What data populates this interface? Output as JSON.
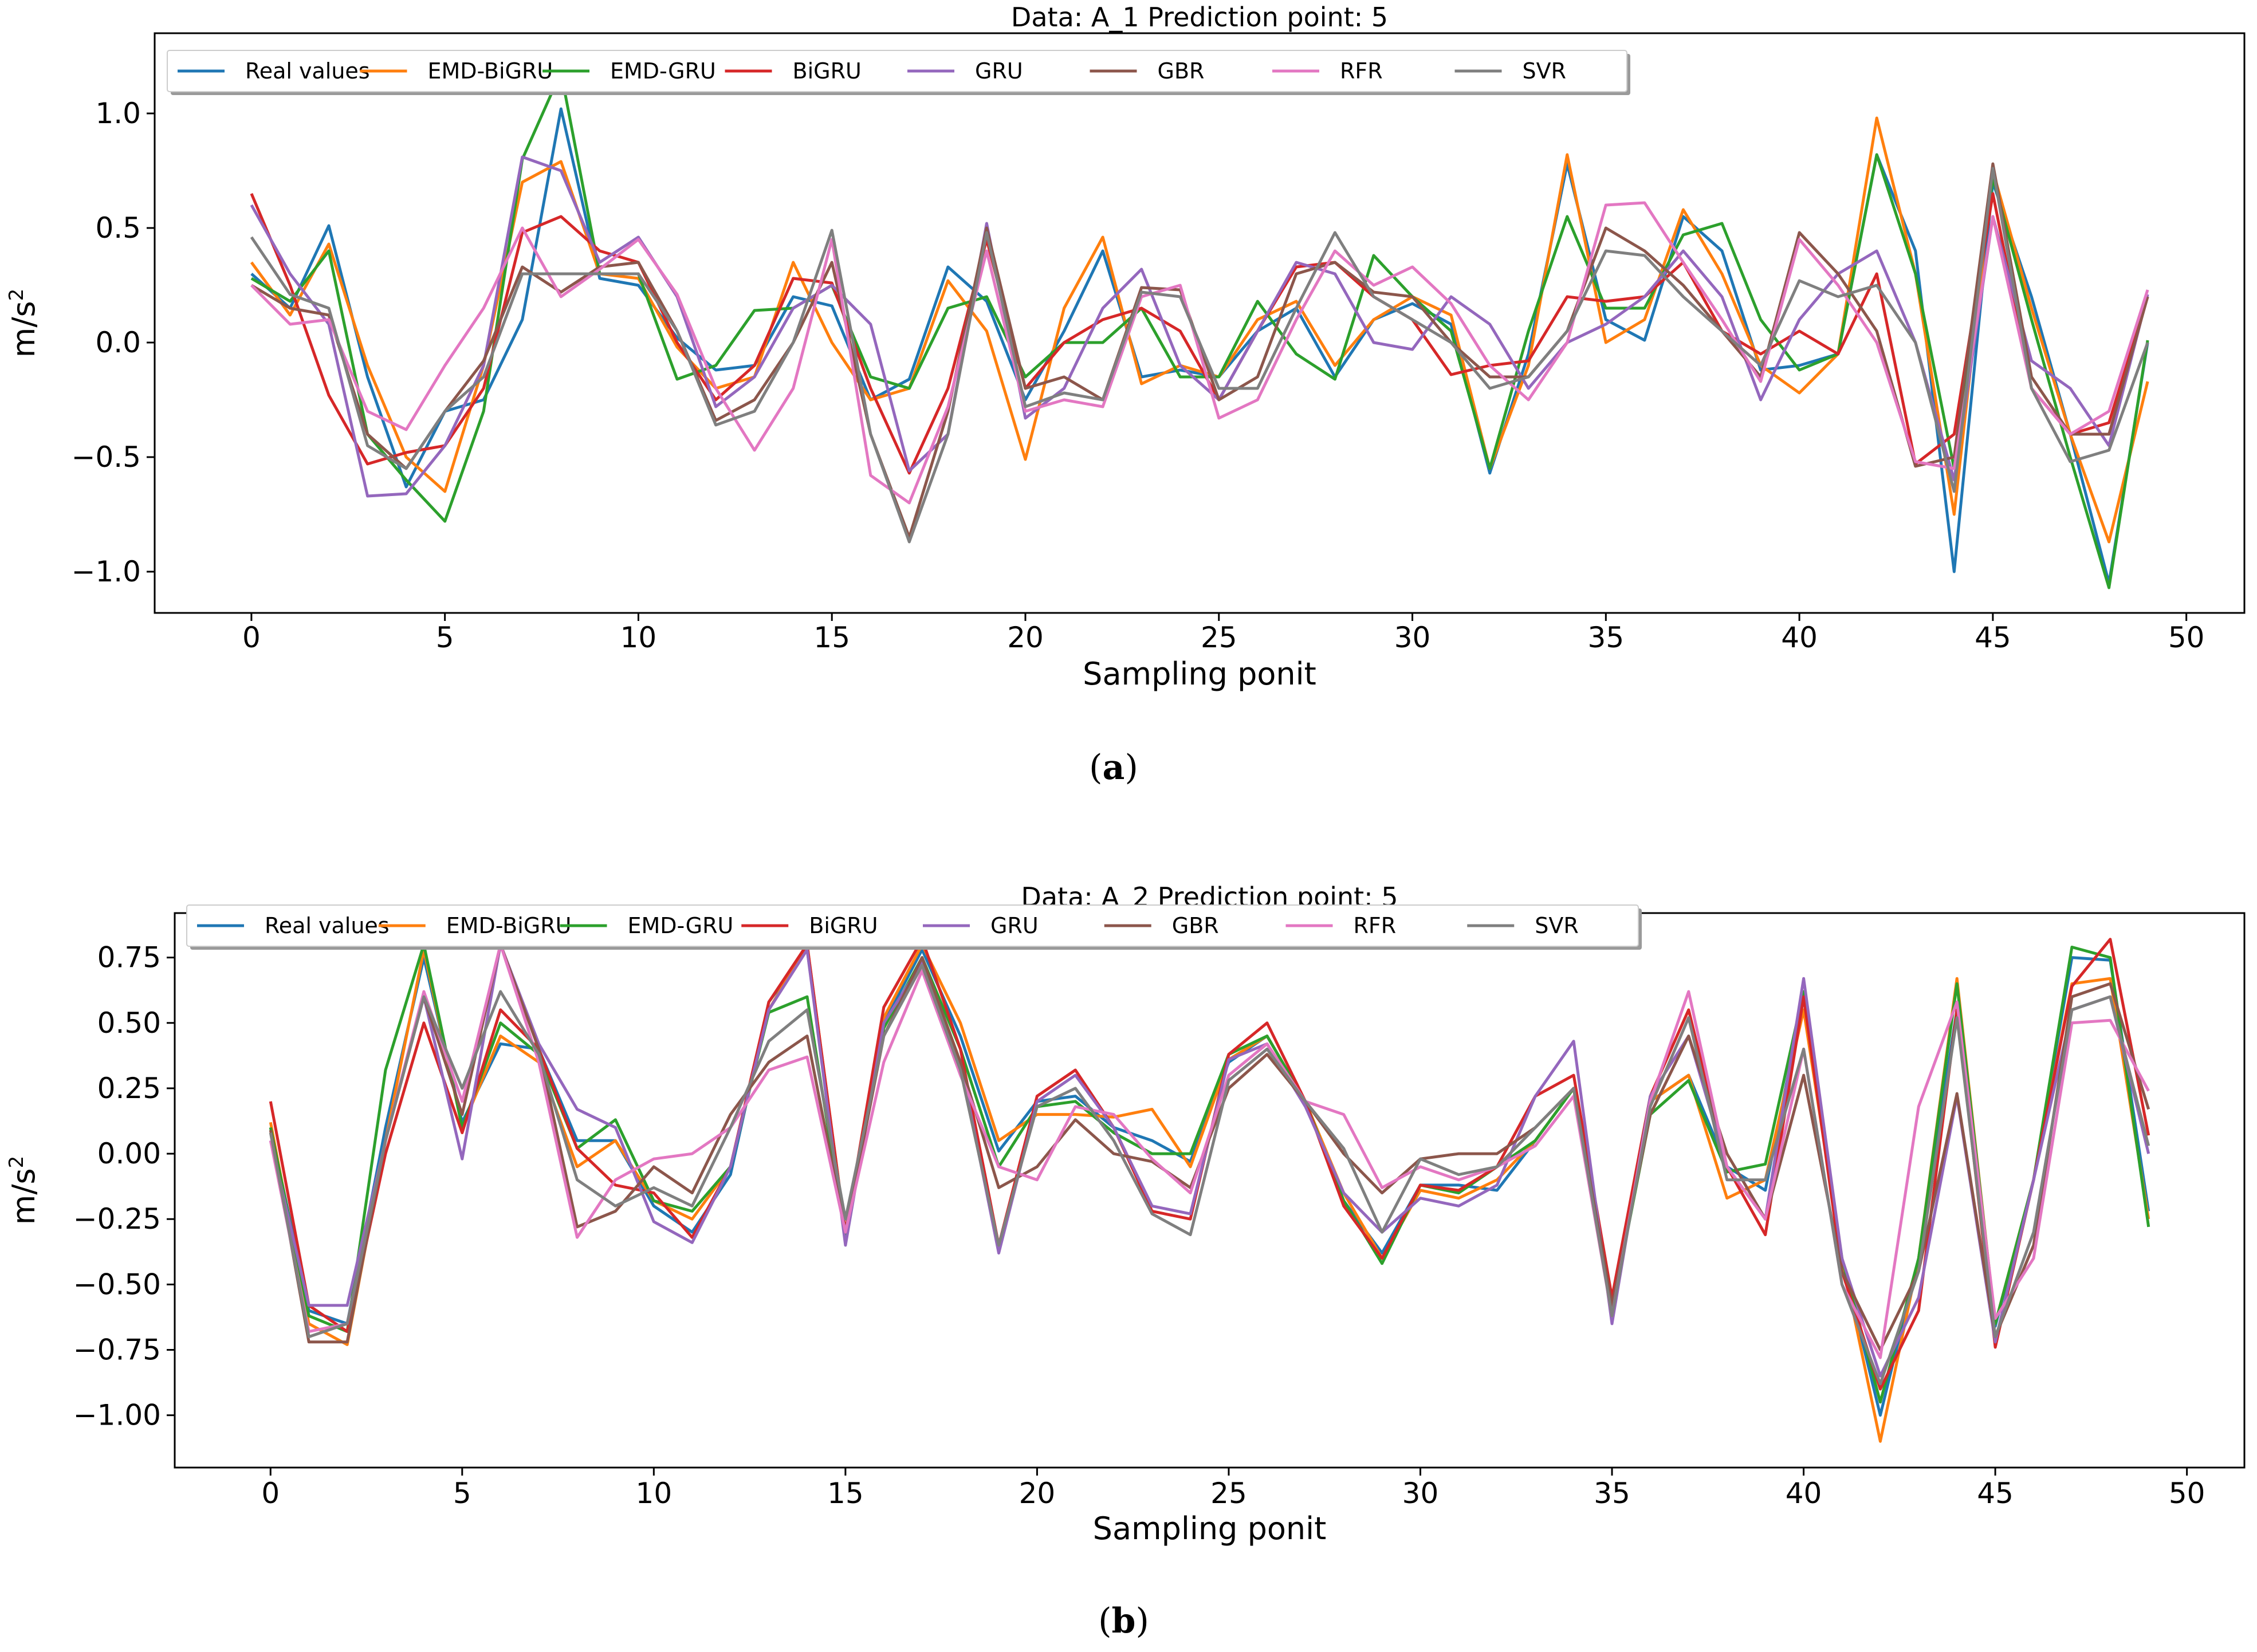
{
  "chart_data": [
    {
      "type": "line",
      "panel_label": "a",
      "title": "Data: A_1 Prediction point: 5",
      "xlabel": "Sampling ponit",
      "ylabel": "m/s",
      "ylabel_sup": "2",
      "xlim": [
        -2.5,
        51.5
      ],
      "ylim": [
        -1.18,
        1.35
      ],
      "xticks": [
        0,
        5,
        10,
        15,
        20,
        25,
        30,
        35,
        40,
        45,
        50
      ],
      "yticks": [
        -1.0,
        -0.5,
        0.0,
        0.5,
        1.0
      ],
      "ytick_labels": [
        "−1.0",
        "−0.5",
        "0.0",
        "0.5",
        "1.0"
      ],
      "legend_position": "top-left",
      "x": [
        0,
        1,
        2,
        3,
        4,
        5,
        6,
        7,
        8,
        9,
        10,
        11,
        12,
        13,
        14,
        15,
        16,
        17,
        18,
        19,
        20,
        21,
        22,
        23,
        24,
        25,
        26,
        27,
        28,
        29,
        30,
        31,
        32,
        33,
        34,
        35,
        36,
        37,
        38,
        39,
        40,
        41,
        42,
        43,
        44,
        45,
        46,
        47,
        48,
        49
      ],
      "series": [
        {
          "name": "Real values",
          "color": "#1f77b4",
          "values": [
            0.3,
            0.15,
            0.51,
            -0.15,
            -0.63,
            -0.3,
            -0.25,
            0.1,
            1.02,
            0.28,
            0.25,
            0.02,
            -0.12,
            -0.1,
            0.2,
            0.16,
            -0.25,
            -0.16,
            0.33,
            0.18,
            -0.25,
            0.05,
            0.4,
            -0.15,
            -0.12,
            -0.15,
            0.05,
            0.15,
            -0.15,
            0.1,
            0.17,
            0.08,
            -0.57,
            -0.05,
            0.78,
            0.1,
            0.01,
            0.55,
            0.4,
            -0.12,
            -0.1,
            -0.05,
            0.82,
            0.4,
            -1.0,
            0.7,
            0.2,
            -0.4,
            -1.05,
            0.0
          ]
        },
        {
          "name": "EMD-BiGRU",
          "color": "#ff7f0e",
          "values": [
            0.35,
            0.12,
            0.43,
            -0.1,
            -0.5,
            -0.65,
            -0.1,
            0.7,
            0.79,
            0.3,
            0.28,
            -0.02,
            -0.2,
            -0.15,
            0.35,
            0.0,
            -0.25,
            -0.2,
            0.27,
            0.05,
            -0.51,
            0.15,
            0.46,
            -0.18,
            -0.1,
            -0.15,
            0.1,
            0.18,
            -0.1,
            0.1,
            0.2,
            0.12,
            -0.55,
            -0.1,
            0.82,
            0.0,
            0.1,
            0.58,
            0.3,
            -0.1,
            -0.22,
            -0.05,
            0.98,
            0.3,
            -0.75,
            0.75,
            0.15,
            -0.4,
            -0.87,
            -0.17
          ]
        },
        {
          "name": "EMD-GRU",
          "color": "#2ca02c",
          "values": [
            0.28,
            0.18,
            0.4,
            -0.4,
            -0.6,
            -0.78,
            -0.3,
            0.8,
            1.18,
            0.3,
            0.3,
            -0.16,
            -0.1,
            0.14,
            0.15,
            0.25,
            -0.15,
            -0.2,
            0.15,
            0.2,
            -0.15,
            0.0,
            0.0,
            0.15,
            -0.15,
            -0.15,
            0.18,
            -0.05,
            -0.16,
            0.38,
            0.2,
            0.05,
            -0.55,
            0.05,
            0.55,
            0.15,
            0.15,
            0.47,
            0.52,
            0.1,
            -0.12,
            -0.05,
            0.82,
            0.3,
            -0.55,
            0.72,
            0.1,
            -0.5,
            -1.07,
            0.01
          ]
        },
        {
          "name": "BiGRU",
          "color": "#d62728",
          "values": [
            0.65,
            0.25,
            -0.23,
            -0.53,
            -0.48,
            -0.45,
            -0.2,
            0.48,
            0.55,
            0.4,
            0.35,
            0.0,
            -0.25,
            -0.1,
            0.28,
            0.26,
            -0.2,
            -0.57,
            -0.2,
            0.45,
            -0.2,
            0.0,
            0.1,
            0.15,
            0.05,
            -0.25,
            0.05,
            0.33,
            0.35,
            0.2,
            0.1,
            -0.14,
            -0.1,
            -0.08,
            0.2,
            0.18,
            0.2,
            0.35,
            0.05,
            -0.05,
            0.05,
            -0.05,
            0.3,
            -0.53,
            -0.4,
            0.65,
            -0.2,
            -0.4,
            -0.35,
            0.2
          ]
        },
        {
          "name": "GRU",
          "color": "#9467bd",
          "values": [
            0.6,
            0.3,
            0.08,
            -0.67,
            -0.66,
            -0.45,
            -0.1,
            0.81,
            0.75,
            0.35,
            0.46,
            0.2,
            -0.28,
            -0.15,
            0.15,
            0.25,
            0.08,
            -0.56,
            -0.4,
            0.52,
            -0.33,
            -0.2,
            0.15,
            0.32,
            -0.1,
            -0.25,
            0.05,
            0.35,
            0.3,
            0.0,
            -0.03,
            0.2,
            0.08,
            -0.2,
            0.0,
            0.08,
            0.2,
            0.4,
            0.2,
            -0.25,
            0.1,
            0.3,
            0.4,
            0.0,
            -0.6,
            0.55,
            -0.08,
            -0.2,
            -0.45,
            0.21
          ]
        },
        {
          "name": "GBR",
          "color": "#8c564b",
          "values": [
            0.25,
            0.15,
            0.12,
            -0.4,
            -0.55,
            -0.3,
            -0.08,
            0.33,
            0.22,
            0.33,
            0.35,
            0.05,
            -0.34,
            -0.25,
            0.0,
            0.35,
            -0.4,
            -0.85,
            -0.3,
            0.5,
            -0.2,
            -0.15,
            -0.25,
            0.24,
            0.23,
            -0.25,
            -0.15,
            0.3,
            0.35,
            0.22,
            0.2,
            0.0,
            -0.15,
            -0.15,
            0.05,
            0.5,
            0.4,
            0.25,
            0.05,
            -0.15,
            0.48,
            0.3,
            0.05,
            -0.54,
            -0.5,
            0.78,
            -0.15,
            -0.4,
            -0.4,
            0.2
          ]
        },
        {
          "name": "RFR",
          "color": "#e377c2",
          "values": [
            0.25,
            0.08,
            0.1,
            -0.3,
            -0.38,
            -0.1,
            0.15,
            0.5,
            0.2,
            0.32,
            0.45,
            0.21,
            -0.2,
            -0.47,
            -0.2,
            0.45,
            -0.58,
            -0.7,
            -0.28,
            0.4,
            -0.3,
            -0.25,
            -0.28,
            0.2,
            0.25,
            -0.33,
            -0.25,
            0.1,
            0.4,
            0.25,
            0.33,
            0.17,
            -0.1,
            -0.25,
            0.0,
            0.6,
            0.61,
            0.35,
            0.1,
            -0.17,
            0.45,
            0.25,
            0.0,
            -0.52,
            -0.55,
            0.55,
            -0.2,
            -0.4,
            -0.3,
            0.23
          ]
        },
        {
          "name": "SVR",
          "color": "#7f7f7f",
          "values": [
            0.46,
            0.21,
            0.15,
            -0.45,
            -0.55,
            -0.3,
            -0.15,
            0.3,
            0.3,
            0.3,
            0.3,
            0.05,
            -0.36,
            -0.3,
            0.0,
            0.49,
            -0.4,
            -0.87,
            -0.4,
            0.48,
            -0.28,
            -0.22,
            -0.25,
            0.22,
            0.2,
            -0.2,
            -0.2,
            0.15,
            0.48,
            0.2,
            0.1,
            0.0,
            -0.2,
            -0.15,
            0.05,
            0.4,
            0.38,
            0.2,
            0.05,
            -0.1,
            0.27,
            0.2,
            0.25,
            0.0,
            -0.65,
            0.76,
            -0.2,
            -0.52,
            -0.47,
            0.0
          ]
        }
      ]
    },
    {
      "type": "line",
      "panel_label": "b",
      "title": "Data: A_2 Prediction point: 5",
      "xlabel": "Sampling ponit",
      "ylabel": "m/s",
      "ylabel_sup": "2",
      "xlim": [
        -2.5,
        51.5
      ],
      "ylim": [
        -1.2,
        0.92
      ],
      "xticks": [
        0,
        5,
        10,
        15,
        20,
        25,
        30,
        35,
        40,
        45,
        50
      ],
      "yticks": [
        -1.0,
        -0.75,
        -0.5,
        -0.25,
        0.0,
        0.25,
        0.5,
        0.75
      ],
      "ytick_labels": [
        "−1.00",
        "−0.75",
        "−0.50",
        "−0.25",
        "0.00",
        "0.25",
        "0.50",
        "0.75"
      ],
      "legend_position": "top-left",
      "x": [
        0,
        1,
        2,
        3,
        4,
        5,
        6,
        7,
        8,
        9,
        10,
        11,
        12,
        13,
        14,
        15,
        16,
        17,
        18,
        19,
        20,
        21,
        22,
        23,
        24,
        25,
        26,
        27,
        28,
        29,
        30,
        31,
        32,
        33,
        34,
        35,
        36,
        37,
        38,
        39,
        40,
        41,
        42,
        43,
        44,
        45,
        46,
        47,
        48,
        49
      ],
      "series": [
        {
          "name": "Real values",
          "color": "#1f77b4",
          "values": [
            0.1,
            -0.6,
            -0.65,
            0.1,
            0.75,
            0.12,
            0.42,
            0.4,
            0.05,
            0.05,
            -0.2,
            -0.3,
            -0.08,
            0.58,
            0.78,
            -0.3,
            0.5,
            0.78,
            0.45,
            0.01,
            0.2,
            0.22,
            0.1,
            0.05,
            -0.03,
            0.35,
            0.45,
            0.2,
            -0.18,
            -0.38,
            -0.12,
            -0.12,
            -0.14,
            0.05,
            0.25,
            -0.62,
            0.2,
            0.3,
            -0.05,
            -0.14,
            0.6,
            -0.4,
            -1.0,
            -0.4,
            0.55,
            -0.66,
            -0.1,
            0.75,
            0.74,
            -0.22
          ]
        },
        {
          "name": "EMD-BiGRU",
          "color": "#ff7f0e",
          "values": [
            0.12,
            -0.65,
            -0.73,
            0.05,
            0.78,
            0.1,
            0.45,
            0.35,
            -0.05,
            0.05,
            -0.18,
            -0.25,
            -0.05,
            0.55,
            0.8,
            -0.3,
            0.52,
            0.8,
            0.5,
            0.05,
            0.15,
            0.15,
            0.14,
            0.17,
            -0.05,
            0.36,
            0.45,
            0.2,
            -0.15,
            -0.4,
            -0.14,
            -0.17,
            -0.1,
            0.05,
            0.25,
            -0.6,
            0.2,
            0.3,
            -0.17,
            -0.1,
            0.55,
            -0.4,
            -1.1,
            -0.4,
            0.67,
            -0.65,
            -0.1,
            0.65,
            0.67,
            -0.25
          ]
        },
        {
          "name": "EMD-GRU",
          "color": "#2ca02c",
          "values": [
            0.1,
            -0.62,
            -0.68,
            0.32,
            0.8,
            0.1,
            0.5,
            0.38,
            0.02,
            0.13,
            -0.18,
            -0.22,
            -0.05,
            0.54,
            0.6,
            -0.32,
            0.48,
            0.75,
            0.4,
            -0.05,
            0.18,
            0.2,
            0.08,
            0.0,
            0.0,
            0.38,
            0.45,
            0.2,
            -0.18,
            -0.42,
            -0.12,
            -0.15,
            -0.05,
            0.05,
            0.25,
            -0.6,
            0.15,
            0.28,
            -0.07,
            -0.04,
            0.62,
            -0.4,
            -0.95,
            -0.4,
            0.65,
            -0.65,
            -0.1,
            0.79,
            0.75,
            -0.28
          ]
        },
        {
          "name": "BiGRU",
          "color": "#d62728",
          "values": [
            0.2,
            -0.58,
            -0.68,
            0.0,
            0.5,
            0.08,
            0.55,
            0.4,
            0.02,
            -0.12,
            -0.15,
            -0.32,
            -0.05,
            0.58,
            0.8,
            -0.3,
            0.56,
            0.82,
            0.4,
            -0.35,
            0.22,
            0.32,
            0.1,
            -0.22,
            -0.25,
            0.38,
            0.5,
            0.2,
            -0.2,
            -0.4,
            -0.12,
            -0.14,
            -0.05,
            0.22,
            0.3,
            -0.55,
            0.22,
            0.55,
            -0.05,
            -0.31,
            0.6,
            -0.45,
            -0.9,
            -0.6,
            0.55,
            -0.74,
            -0.1,
            0.64,
            0.82,
            0.07
          ]
        },
        {
          "name": "GRU",
          "color": "#9467bd",
          "values": [
            0.05,
            -0.58,
            -0.58,
            0.05,
            0.6,
            -0.02,
            0.8,
            0.42,
            0.17,
            0.1,
            -0.26,
            -0.34,
            -0.05,
            0.55,
            0.78,
            -0.35,
            0.5,
            0.73,
            0.35,
            -0.38,
            0.2,
            0.3,
            0.1,
            -0.2,
            -0.23,
            0.36,
            0.42,
            0.18,
            -0.15,
            -0.3,
            -0.17,
            -0.2,
            -0.12,
            0.22,
            0.43,
            -0.65,
            0.22,
            0.45,
            -0.05,
            -0.25,
            0.67,
            -0.4,
            -0.85,
            -0.55,
            0.22,
            -0.72,
            -0.1,
            0.55,
            0.6,
            0.0
          ]
        },
        {
          "name": "GBR",
          "color": "#8c564b",
          "values": [
            0.09,
            -0.72,
            -0.72,
            0.05,
            0.6,
            0.15,
            0.8,
            0.4,
            -0.28,
            -0.22,
            -0.05,
            -0.15,
            0.15,
            0.35,
            0.45,
            -0.3,
            0.45,
            0.75,
            0.35,
            -0.13,
            -0.05,
            0.13,
            0.0,
            -0.03,
            -0.13,
            0.25,
            0.38,
            0.2,
            0.0,
            -0.15,
            -0.02,
            0.0,
            0.0,
            0.1,
            0.25,
            -0.58,
            0.15,
            0.45,
            0.0,
            -0.25,
            0.3,
            -0.45,
            -0.75,
            -0.45,
            0.23,
            -0.7,
            -0.35,
            0.6,
            0.65,
            0.17
          ]
        },
        {
          "name": "RFR",
          "color": "#e377c2",
          "values": [
            0.05,
            -0.68,
            -0.65,
            0.05,
            0.62,
            0.2,
            0.8,
            0.35,
            -0.32,
            -0.1,
            -0.02,
            0.0,
            0.1,
            0.32,
            0.37,
            -0.3,
            0.35,
            0.7,
            0.3,
            -0.05,
            -0.1,
            0.18,
            0.15,
            -0.02,
            -0.15,
            0.3,
            0.42,
            0.2,
            0.15,
            -0.13,
            -0.05,
            -0.1,
            -0.05,
            0.03,
            0.22,
            -0.62,
            0.2,
            0.62,
            -0.05,
            -0.25,
            0.4,
            -0.5,
            -0.78,
            0.18,
            0.58,
            -0.63,
            -0.4,
            0.5,
            0.51,
            0.24
          ]
        },
        {
          "name": "SVR",
          "color": "#7f7f7f",
          "values": [
            0.08,
            -0.7,
            -0.65,
            0.05,
            0.6,
            0.25,
            0.62,
            0.38,
            -0.1,
            -0.2,
            -0.13,
            -0.2,
            0.1,
            0.43,
            0.55,
            -0.25,
            0.45,
            0.72,
            0.32,
            -0.35,
            0.18,
            0.25,
            0.05,
            -0.23,
            -0.31,
            0.28,
            0.4,
            0.2,
            0.02,
            -0.3,
            -0.02,
            -0.08,
            -0.05,
            0.1,
            0.25,
            -0.62,
            0.18,
            0.52,
            -0.1,
            -0.1,
            0.4,
            -0.5,
            -0.88,
            -0.45,
            0.52,
            -0.7,
            -0.3,
            0.55,
            0.6,
            0.03
          ]
        }
      ]
    }
  ]
}
